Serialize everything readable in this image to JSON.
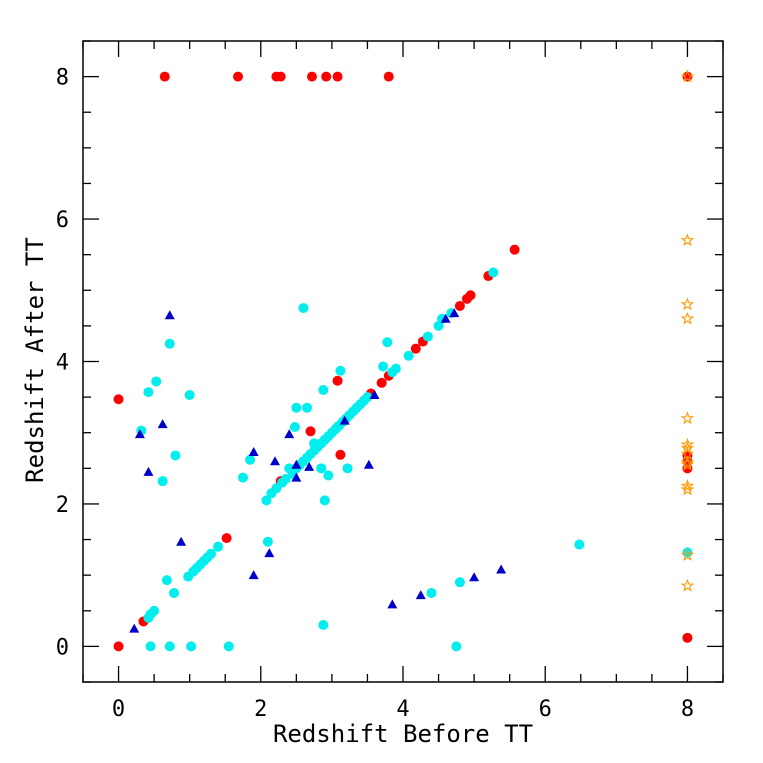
{
  "chart_data": {
    "type": "scatter",
    "title": "",
    "xlabel": "Redshift Before TT",
    "ylabel": "Redshift After TT",
    "xlim": [
      -0.5,
      8.5
    ],
    "ylim": [
      -0.5,
      8.5
    ],
    "xticks": [
      0,
      2,
      4,
      6,
      8
    ],
    "yticks": [
      0,
      2,
      4,
      6,
      8
    ],
    "minor_step": 0.5,
    "grid": false,
    "legend": "none",
    "series": [
      {
        "marker": "circle",
        "color": "#ff0000",
        "points": [
          [
            0,
            0
          ],
          [
            0,
            3.47
          ],
          [
            0.35,
            0.35
          ],
          [
            0.65,
            8
          ],
          [
            1.68,
            8
          ],
          [
            2.22,
            8
          ],
          [
            2.28,
            8
          ],
          [
            2.72,
            8
          ],
          [
            2.92,
            8
          ],
          [
            3.08,
            8
          ],
          [
            3.8,
            8
          ],
          [
            1.52,
            1.52
          ],
          [
            2.28,
            2.32
          ],
          [
            2.7,
            3.02
          ],
          [
            3.08,
            3.73
          ],
          [
            3.12,
            2.69
          ],
          [
            3.55,
            3.55
          ],
          [
            3.7,
            3.7
          ],
          [
            3.8,
            3.8
          ],
          [
            4.18,
            4.18
          ],
          [
            4.28,
            4.28
          ],
          [
            4.8,
            4.78
          ],
          [
            4.9,
            4.88
          ],
          [
            4.95,
            4.93
          ],
          [
            5.2,
            5.2
          ],
          [
            5.57,
            5.57
          ],
          [
            8,
            8
          ],
          [
            8,
            2.68
          ],
          [
            8,
            2.6
          ],
          [
            8,
            2.5
          ],
          [
            8,
            0.12
          ]
        ]
      },
      {
        "marker": "circle",
        "color": "#00eeee",
        "points": [
          [
            0.32,
            3.03
          ],
          [
            0.42,
            3.57
          ],
          [
            0.53,
            3.72
          ],
          [
            0.62,
            2.32
          ],
          [
            0.72,
            4.25
          ],
          [
            0.8,
            2.68
          ],
          [
            1.0,
            3.53
          ],
          [
            0.68,
            0.93
          ],
          [
            0.78,
            0.75
          ],
          [
            0.42,
            0.4
          ],
          [
            0.45,
            0.45
          ],
          [
            0.5,
            0.5
          ],
          [
            0.45,
            0
          ],
          [
            0.72,
            0
          ],
          [
            1.02,
            0
          ],
          [
            1.55,
            0
          ],
          [
            0.98,
            0.98
          ],
          [
            1.05,
            1.05
          ],
          [
            1.1,
            1.1
          ],
          [
            1.15,
            1.15
          ],
          [
            1.2,
            1.2
          ],
          [
            1.25,
            1.25
          ],
          [
            1.3,
            1.3
          ],
          [
            1.4,
            1.4
          ],
          [
            1.85,
            2.62
          ],
          [
            1.75,
            2.37
          ],
          [
            2.1,
            1.47
          ],
          [
            2.08,
            2.05
          ],
          [
            2.15,
            2.15
          ],
          [
            2.22,
            2.22
          ],
          [
            2.3,
            2.3
          ],
          [
            2.35,
            2.35
          ],
          [
            2.4,
            2.5
          ],
          [
            2.45,
            2.42
          ],
          [
            2.5,
            2.5
          ],
          [
            2.55,
            2.55
          ],
          [
            2.6,
            2.6
          ],
          [
            2.65,
            2.65
          ],
          [
            2.7,
            2.7
          ],
          [
            2.75,
            2.75
          ],
          [
            2.8,
            2.8
          ],
          [
            2.85,
            2.85
          ],
          [
            2.9,
            2.9
          ],
          [
            2.95,
            2.95
          ],
          [
            3.0,
            3.0
          ],
          [
            3.05,
            3.05
          ],
          [
            3.1,
            3.1
          ],
          [
            3.15,
            3.15
          ],
          [
            3.2,
            3.2
          ],
          [
            3.25,
            3.25
          ],
          [
            3.3,
            3.3
          ],
          [
            3.35,
            3.35
          ],
          [
            3.4,
            3.4
          ],
          [
            3.45,
            3.45
          ],
          [
            3.5,
            3.5
          ],
          [
            2.5,
            3.35
          ],
          [
            2.65,
            3.35
          ],
          [
            2.48,
            3.08
          ],
          [
            2.6,
            4.75
          ],
          [
            2.75,
            2.85
          ],
          [
            2.85,
            2.5
          ],
          [
            2.9,
            2.05
          ],
          [
            2.95,
            2.4
          ],
          [
            2.88,
            3.6
          ],
          [
            3.12,
            3.87
          ],
          [
            3.22,
            2.5
          ],
          [
            3.72,
            3.93
          ],
          [
            3.78,
            4.27
          ],
          [
            3.85,
            3.85
          ],
          [
            3.9,
            3.9
          ],
          [
            4.08,
            4.08
          ],
          [
            4.35,
            4.35
          ],
          [
            4.5,
            4.5
          ],
          [
            4.55,
            4.6
          ],
          [
            4.68,
            4.68
          ],
          [
            5.27,
            5.25
          ],
          [
            3.08,
            3.08
          ],
          [
            2.88,
            0.3
          ],
          [
            4.4,
            0.75
          ],
          [
            4.75,
            0
          ],
          [
            4.8,
            0.9
          ],
          [
            6.48,
            1.43
          ],
          [
            8,
            1.32
          ]
        ]
      },
      {
        "marker": "triangle",
        "color": "#0000cc",
        "points": [
          [
            0.3,
            2.98
          ],
          [
            0.42,
            2.45
          ],
          [
            0.62,
            3.12
          ],
          [
            0.72,
            4.65
          ],
          [
            0.88,
            1.47
          ],
          [
            0.22,
            0.25
          ],
          [
            1.9,
            2.73
          ],
          [
            1.9,
            1.0
          ],
          [
            2.12,
            1.31
          ],
          [
            2.2,
            2.6
          ],
          [
            2.4,
            2.98
          ],
          [
            2.5,
            2.55
          ],
          [
            2.5,
            2.37
          ],
          [
            2.68,
            2.52
          ],
          [
            3.18,
            3.17
          ],
          [
            3.52,
            2.55
          ],
          [
            3.6,
            3.53
          ],
          [
            3.85,
            0.59
          ],
          [
            4.25,
            0.72
          ],
          [
            4.6,
            4.6
          ],
          [
            4.72,
            4.68
          ],
          [
            5.0,
            0.97
          ],
          [
            5.38,
            1.08
          ]
        ]
      },
      {
        "marker": "star",
        "color": "#ff9900",
        "points": [
          [
            8,
            8
          ],
          [
            8,
            5.7
          ],
          [
            8,
            4.8
          ],
          [
            8,
            4.6
          ],
          [
            8,
            3.2
          ],
          [
            8,
            2.83
          ],
          [
            8,
            2.78
          ],
          [
            8,
            2.7
          ],
          [
            8,
            2.58
          ],
          [
            8,
            2.55
          ],
          [
            8,
            2.25
          ],
          [
            8,
            2.2
          ],
          [
            8,
            1.28
          ],
          [
            8,
            0.85
          ]
        ]
      }
    ]
  }
}
